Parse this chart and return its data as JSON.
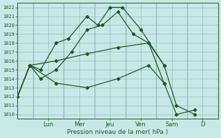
{
  "background_color": "#c8e8e8",
  "grid_color": "#99bbbb",
  "line_color": "#1a5c1a",
  "day_labels": [
    "Lun",
    "Mer",
    "Jeu",
    "Ven",
    "Sam",
    "D"
  ],
  "day_positions": [
    2,
    4,
    6,
    8,
    10,
    12
  ],
  "vline_positions": [
    1,
    3,
    5,
    7,
    9,
    11
  ],
  "xlabel": "Pression niveau de la mer( hPa )",
  "ylim": [
    1009.5,
    1022.5
  ],
  "yticks": [
    1010,
    1011,
    1012,
    1013,
    1014,
    1015,
    1016,
    1017,
    1018,
    1019,
    1020,
    1021,
    1022
  ],
  "xlim": [
    0,
    13
  ],
  "series": [
    {
      "x": [
        0.5,
        1.5,
        2.5,
        3.5,
        4.5,
        5.5,
        6.5,
        7.5,
        8.5
      ],
      "y": [
        1015,
        1015.5,
        1018,
        1018.5,
        1021,
        1020,
        1022,
        1022,
        1019.5
      ]
    },
    {
      "x": [
        0.5,
        1.5,
        2.5,
        3.5,
        4.5,
        5.5,
        6.5,
        7.5,
        8.5
      ],
      "y": [
        1015,
        1014,
        1015,
        1017,
        1019.5,
        1020,
        1021.5,
        1019,
        1018
      ]
    },
    {
      "x": [
        0.5,
        2.5,
        4.5,
        6.5,
        8.5,
        9.5,
        10.5,
        11.5
      ],
      "y": [
        1015,
        1016,
        1016.5,
        1017.2,
        1018,
        1015.5,
        1011,
        1010
      ]
    },
    {
      "x": [
        0.5,
        1.5,
        2.5,
        3.5,
        4.5,
        5.5,
        6.5,
        7.5,
        8.5,
        9.5,
        10.5,
        11.5
      ],
      "y": [
        1015,
        1015,
        1013.5,
        1013,
        1014,
        1014,
        1014,
        1015.5,
        1013.5,
        1010,
        1010.5,
        null
      ]
    }
  ],
  "series2": [
    {
      "x": [
        0,
        0.8,
        1.5,
        2.5,
        3.3,
        4.5,
        5.2,
        6.0,
        6.8,
        8.0,
        9.5
      ],
      "y": [
        1012,
        1015.5,
        1015,
        1018.0,
        1018.5,
        1021.0,
        1020.0,
        1022.0,
        1022.0,
        1019.5,
        1015.5
      ]
    },
    {
      "x": [
        0,
        0.8,
        1.5,
        2.5,
        3.5,
        4.5,
        5.5,
        6.5,
        7.5,
        8.5,
        9.5
      ],
      "y": [
        1012,
        1015.5,
        1014.0,
        1015.0,
        1017.0,
        1019.5,
        1020.0,
        1021.5,
        1019.0,
        1018.0,
        1013.5
      ]
    },
    {
      "x": [
        0,
        0.8,
        2.5,
        4.5,
        6.5,
        8.5,
        9.5,
        10.3,
        11.5
      ],
      "y": [
        1012,
        1015.5,
        1016.0,
        1016.8,
        1017.5,
        1018.0,
        1015.5,
        1011.0,
        1010.0
      ]
    },
    {
      "x": [
        0,
        0.8,
        2.5,
        4.5,
        6.5,
        8.5,
        9.5,
        10.3,
        11.5
      ],
      "y": [
        1012,
        1015.5,
        1013.5,
        1013.0,
        1014.0,
        1015.5,
        1013.5,
        1010.0,
        1010.5
      ]
    }
  ]
}
